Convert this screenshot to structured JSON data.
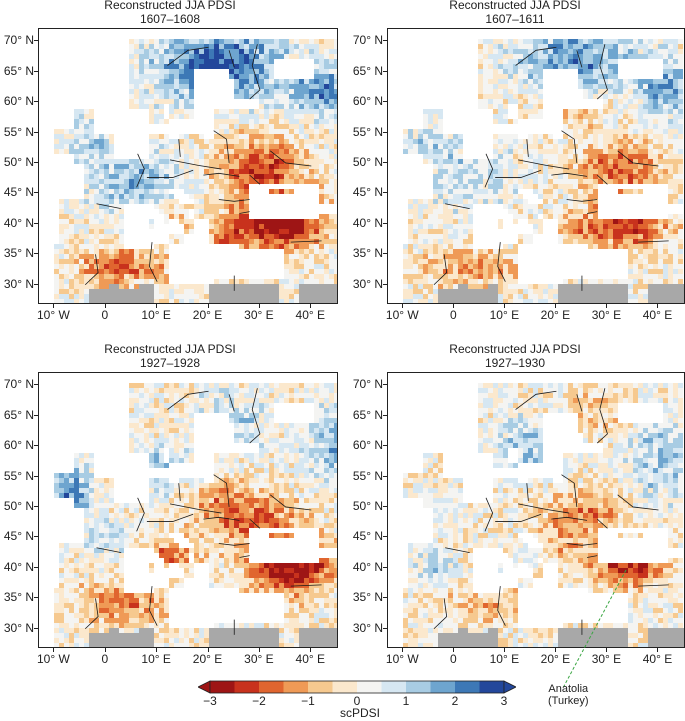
{
  "panels": [
    {
      "title": "Reconstructed JJA PDSI",
      "period": "1607–1608",
      "pattern": "p1607a"
    },
    {
      "title": "Reconstructed JJA PDSI",
      "period": "1607–1611",
      "pattern": "p1607b"
    },
    {
      "title": "Reconstructed JJA PDSI",
      "period": "1927–1928",
      "pattern": "p1927a"
    },
    {
      "title": "Reconstructed JJA PDSI",
      "period": "1927–1930",
      "pattern": "p1927b"
    }
  ],
  "axes": {
    "lat_labels": [
      "70° N",
      "65° N",
      "60° N",
      "55° N",
      "50° N",
      "45° N",
      "40° N",
      "35° N",
      "30° N"
    ],
    "lat_values": [
      70,
      65,
      60,
      55,
      50,
      45,
      40,
      35,
      30
    ],
    "lon_labels": [
      "10° W",
      "0",
      "10° E",
      "20° E",
      "30° E",
      "40° E"
    ],
    "lon_values": [
      -10,
      0,
      10,
      20,
      30,
      40
    ],
    "lat_range": [
      27,
      72
    ],
    "lon_range": [
      -13,
      45
    ]
  },
  "colorbar": {
    "label": "scPDSI",
    "tick_labels": [
      "−3",
      "−2",
      "−1",
      "0",
      "1",
      "2",
      "3"
    ],
    "tick_values": [
      -3,
      -2,
      -1,
      0,
      1,
      2,
      3
    ],
    "colors": [
      "#9e1515",
      "#c8321d",
      "#e0652f",
      "#ef9a56",
      "#f6c98f",
      "#fbe8cd",
      "#f4f4f2",
      "#d6e7f2",
      "#a8cce3",
      "#6ea5cf",
      "#3d78b6",
      "#23479b"
    ],
    "missing_color": "#a8a8a8"
  },
  "annotation": {
    "line1": "Anatolia",
    "line2": "(Turkey)",
    "line_color": "#3aa642"
  }
}
